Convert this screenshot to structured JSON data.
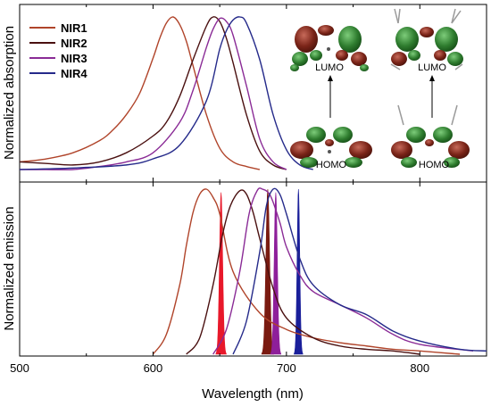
{
  "chart_data": {
    "type": "line",
    "xlabel": "Wavelength (nm)",
    "xlim": [
      500,
      850
    ],
    "x_ticks": [
      "500",
      "600",
      "700",
      "800"
    ],
    "panels": [
      {
        "ylabel": "Normalized absorption",
        "ylim": [
          0,
          1.1
        ],
        "series": [
          {
            "name": "NIR1",
            "color": "#b0442a",
            "x": [
              500,
              520,
              540,
              560,
              570,
              580,
              590,
              600,
              605,
              610,
              615,
              620,
              625,
              630,
              640,
              650,
              660,
              670,
              680
            ],
            "y": [
              0.05,
              0.07,
              0.11,
              0.19,
              0.26,
              0.36,
              0.5,
              0.73,
              0.86,
              0.96,
              1.0,
              0.95,
              0.84,
              0.68,
              0.36,
              0.14,
              0.05,
              0.02,
              0.0
            ]
          },
          {
            "name": "NIR2",
            "color": "#4a1010",
            "x": [
              500,
              520,
              540,
              560,
              580,
              600,
              610,
              620,
              630,
              640,
              645,
              650,
              655,
              660,
              670,
              680,
              690,
              700
            ],
            "y": [
              0.05,
              0.04,
              0.03,
              0.05,
              0.11,
              0.22,
              0.31,
              0.48,
              0.72,
              0.94,
              1.0,
              0.97,
              0.86,
              0.7,
              0.36,
              0.12,
              0.03,
              0.0
            ]
          },
          {
            "name": "NIR3",
            "color": "#8a2b96",
            "x": [
              500,
              520,
              540,
              560,
              580,
              600,
              620,
              630,
              640,
              645,
              650,
              655,
              660,
              670,
              680,
              690,
              700
            ],
            "y": [
              0.0,
              0.0,
              0.0,
              0.02,
              0.05,
              0.11,
              0.31,
              0.52,
              0.8,
              0.92,
              0.99,
              0.97,
              0.88,
              0.55,
              0.2,
              0.05,
              0.0
            ]
          },
          {
            "name": "NIR4",
            "color": "#252a8a",
            "x": [
              500,
              540,
              580,
              600,
              620,
              640,
              650,
              655,
              660,
              665,
              670,
              680,
              690,
              700,
              710,
              720
            ],
            "y": [
              0.0,
              0.01,
              0.03,
              0.07,
              0.16,
              0.45,
              0.79,
              0.91,
              0.98,
              1.0,
              0.96,
              0.72,
              0.36,
              0.13,
              0.03,
              0.0
            ]
          }
        ]
      },
      {
        "ylabel": "Normalized emission",
        "ylim": [
          0,
          1.1
        ],
        "series": [
          {
            "name": "NIR1",
            "color": "#b0442a",
            "x": [
              600,
              610,
              620,
              625,
              630,
              635,
              640,
              645,
              650,
              660,
              680,
              700,
              720,
              740,
              760,
              780,
              800,
              830
            ],
            "y": [
              0.0,
              0.12,
              0.42,
              0.66,
              0.86,
              0.97,
              1.0,
              0.95,
              0.85,
              0.5,
              0.25,
              0.15,
              0.1,
              0.07,
              0.05,
              0.03,
              0.02,
              0.0
            ]
          },
          {
            "name": "NIR2",
            "color": "#4a1010",
            "x": [
              625,
              635,
              645,
              652,
              658,
              665,
              670,
              675,
              680,
              690,
              700,
              720,
              740,
              760,
              780,
              800
            ],
            "y": [
              0.0,
              0.1,
              0.42,
              0.72,
              0.9,
              0.99,
              0.97,
              0.86,
              0.7,
              0.4,
              0.22,
              0.1,
              0.05,
              0.03,
              0.02,
              0.0
            ]
          },
          {
            "name": "NIR3",
            "color": "#8a2b96",
            "x": [
              645,
              655,
              665,
              672,
              678,
              682,
              688,
              695,
              700,
              710,
              720,
              740,
              760,
              780,
              800,
              840
            ],
            "y": [
              0.0,
              0.15,
              0.5,
              0.85,
              0.99,
              1.0,
              0.96,
              0.8,
              0.65,
              0.48,
              0.38,
              0.3,
              0.22,
              0.12,
              0.06,
              0.02
            ]
          },
          {
            "name": "NIR4",
            "color": "#252a8a",
            "x": [
              660,
              670,
              680,
              685,
              690,
              695,
              700,
              710,
              720,
              740,
              760,
              780,
              800,
              830,
              850
            ],
            "y": [
              0.0,
              0.2,
              0.62,
              0.9,
              1.0,
              0.97,
              0.85,
              0.58,
              0.42,
              0.3,
              0.24,
              0.14,
              0.08,
              0.03,
              0.02
            ]
          }
        ],
        "filled_lines": [
          {
            "color": "#e8182a",
            "center": 651,
            "width": 6,
            "height": 0.98
          },
          {
            "color": "#7a1a10",
            "center": 686,
            "width": 7,
            "height": 1.0
          },
          {
            "color": "#8e1f9a",
            "center": 692,
            "width": 6,
            "height": 0.98
          },
          {
            "color": "#1a1f9a",
            "center": 709,
            "width": 5,
            "height": 1.0
          }
        ]
      }
    ],
    "legend": {
      "placement": "top-left",
      "entries": [
        "NIR1",
        "NIR2",
        "NIR3",
        "NIR4"
      ]
    },
    "inset": {
      "labels": {
        "lumo": "LUMO",
        "homo": "HOMO"
      }
    }
  }
}
